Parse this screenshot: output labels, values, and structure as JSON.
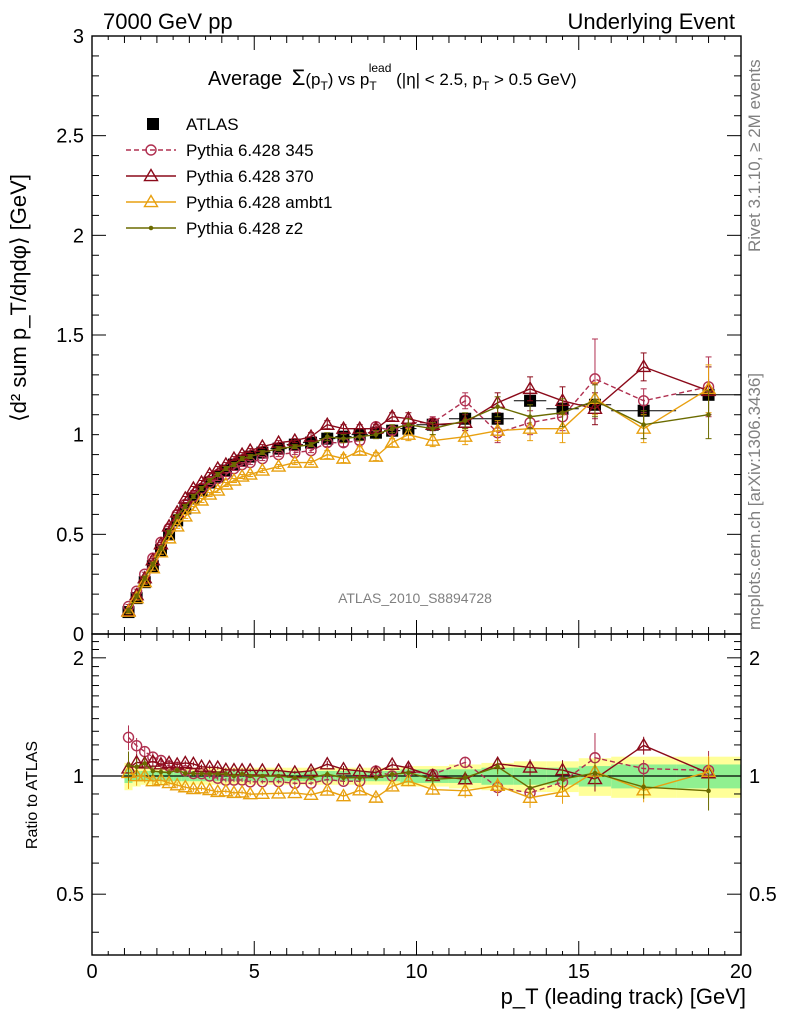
{
  "header": {
    "left": "7000 GeV pp",
    "right": "Underlying Event"
  },
  "plot_title": {
    "prefix": "Average",
    "sigma": "Σ",
    "arg": "(p",
    "arg_sub": "T",
    "arg_close": ")",
    "vs": " vs p",
    "vs_sub": "T",
    "vs_sup": "lead",
    "cuts1": " (|η| < 2.5, p",
    "cuts_sub": "T",
    "cuts2": " > 0.5 GeV)"
  },
  "watermark": "ATLAS_2010_S8894728",
  "side_text": {
    "rivet": "Rivet 3.1.10, ≥ 2M events",
    "mcplots": "mcplots.cern.ch [arXiv:1306.3436]"
  },
  "axes": {
    "ylabel_main": "⟨d² sum p_T/dηdφ⟩ [GeV]",
    "ylabel_ratio": "Ratio to ATLAS",
    "xlabel": "p_T (leading track) [GeV]",
    "main_yticks": [
      "0",
      "0.5",
      "1",
      "1.5",
      "2",
      "2.5",
      "3"
    ],
    "ratio_yticks": [
      "0.5",
      "1",
      "2"
    ],
    "xticks": [
      "0",
      "5",
      "10",
      "15",
      "20"
    ]
  },
  "chart_data": {
    "type": "line",
    "xlim": [
      0,
      20
    ],
    "main_ylim": [
      0,
      3
    ],
    "ratio_ylim": [
      0.35,
      2.3
    ],
    "ratio_scale": "log",
    "grid": false,
    "legend_position": "top-left",
    "x": [
      1.125,
      1.375,
      1.625,
      1.875,
      2.125,
      2.375,
      2.625,
      2.875,
      3.125,
      3.375,
      3.625,
      3.875,
      4.125,
      4.375,
      4.625,
      4.875,
      5.25,
      5.75,
      6.25,
      6.75,
      7.25,
      7.75,
      8.25,
      8.75,
      9.25,
      9.75,
      10.5,
      11.5,
      12.5,
      13.5,
      14.5,
      15.5,
      17.0,
      19.0
    ],
    "x_halfwidth": [
      0.125,
      0.125,
      0.125,
      0.125,
      0.125,
      0.125,
      0.125,
      0.125,
      0.125,
      0.125,
      0.125,
      0.125,
      0.125,
      0.125,
      0.125,
      0.125,
      0.25,
      0.25,
      0.25,
      0.25,
      0.25,
      0.25,
      0.25,
      0.25,
      0.25,
      0.25,
      0.5,
      0.5,
      0.5,
      0.5,
      0.5,
      0.5,
      1.0,
      1.0
    ],
    "data": {
      "name": "ATLAS",
      "values": [
        0.11,
        0.18,
        0.26,
        0.34,
        0.42,
        0.5,
        0.57,
        0.63,
        0.68,
        0.72,
        0.76,
        0.79,
        0.82,
        0.85,
        0.87,
        0.89,
        0.91,
        0.93,
        0.95,
        0.96,
        0.98,
        0.99,
        1.0,
        1.01,
        1.02,
        1.03,
        1.05,
        1.08,
        1.08,
        1.17,
        1.13,
        1.15,
        1.12,
        1.2
      ],
      "errors": [
        0.01,
        0.01,
        0.01,
        0.01,
        0.01,
        0.01,
        0.01,
        0.01,
        0.01,
        0.01,
        0.01,
        0.01,
        0.01,
        0.01,
        0.01,
        0.01,
        0.01,
        0.01,
        0.01,
        0.01,
        0.01,
        0.02,
        0.02,
        0.02,
        0.02,
        0.02,
        0.03,
        0.03,
        0.04,
        0.05,
        0.05,
        0.07,
        0.06,
        0.08
      ]
    },
    "band": {
      "inner": [
        0.04,
        0.03,
        0.03,
        0.03,
        0.03,
        0.03,
        0.03,
        0.03,
        0.03,
        0.03,
        0.03,
        0.03,
        0.03,
        0.03,
        0.03,
        0.03,
        0.03,
        0.03,
        0.03,
        0.03,
        0.03,
        0.03,
        0.03,
        0.03,
        0.03,
        0.04,
        0.04,
        0.04,
        0.05,
        0.05,
        0.05,
        0.06,
        0.07,
        0.07
      ],
      "outer": [
        0.08,
        0.06,
        0.05,
        0.05,
        0.05,
        0.05,
        0.05,
        0.05,
        0.05,
        0.05,
        0.05,
        0.05,
        0.05,
        0.05,
        0.05,
        0.05,
        0.05,
        0.05,
        0.05,
        0.05,
        0.05,
        0.05,
        0.05,
        0.05,
        0.05,
        0.06,
        0.06,
        0.07,
        0.08,
        0.09,
        0.09,
        0.11,
        0.12,
        0.12
      ]
    },
    "series": [
      {
        "name": "Pythia 6.428 345",
        "color": "#b03050",
        "marker": "circle",
        "dashed": true,
        "values": [
          0.138,
          0.215,
          0.3,
          0.38,
          0.46,
          0.53,
          0.6,
          0.65,
          0.69,
          0.73,
          0.76,
          0.78,
          0.8,
          0.83,
          0.85,
          0.86,
          0.88,
          0.9,
          0.91,
          0.92,
          0.96,
          0.96,
          0.97,
          1.04,
          1.02,
          1.06,
          1.06,
          1.17,
          1.01,
          1.06,
          1.09,
          1.28,
          1.17,
          1.24
        ],
        "errors": [
          0.01,
          0.01,
          0.01,
          0.01,
          0.01,
          0.01,
          0.01,
          0.01,
          0.01,
          0.01,
          0.01,
          0.01,
          0.01,
          0.01,
          0.01,
          0.01,
          0.01,
          0.01,
          0.01,
          0.01,
          0.02,
          0.02,
          0.02,
          0.02,
          0.02,
          0.03,
          0.03,
          0.04,
          0.05,
          0.06,
          0.07,
          0.2,
          0.06,
          0.15
        ]
      },
      {
        "name": "Pythia 6.428 370",
        "color": "#8b0a1a",
        "marker": "triangle",
        "dashed": false,
        "values": [
          0.115,
          0.195,
          0.28,
          0.37,
          0.45,
          0.54,
          0.61,
          0.68,
          0.73,
          0.76,
          0.8,
          0.83,
          0.85,
          0.88,
          0.9,
          0.92,
          0.94,
          0.96,
          0.97,
          0.99,
          1.05,
          1.03,
          1.03,
          1.03,
          1.09,
          1.08,
          1.05,
          1.06,
          1.16,
          1.23,
          1.17,
          1.13,
          1.34,
          1.22
        ],
        "errors": [
          0.01,
          0.01,
          0.01,
          0.01,
          0.01,
          0.01,
          0.01,
          0.01,
          0.01,
          0.01,
          0.01,
          0.01,
          0.01,
          0.01,
          0.01,
          0.01,
          0.01,
          0.01,
          0.01,
          0.02,
          0.02,
          0.02,
          0.02,
          0.02,
          0.02,
          0.03,
          0.03,
          0.04,
          0.05,
          0.06,
          0.07,
          0.08,
          0.07,
          0.12
        ]
      },
      {
        "name": "Pythia 6.428 ambt1",
        "color": "#e8a010",
        "marker": "triangle",
        "dashed": false,
        "values": [
          0.112,
          0.18,
          0.26,
          0.33,
          0.41,
          0.48,
          0.54,
          0.59,
          0.63,
          0.67,
          0.7,
          0.72,
          0.75,
          0.77,
          0.79,
          0.8,
          0.82,
          0.84,
          0.86,
          0.86,
          0.9,
          0.88,
          0.92,
          0.89,
          0.96,
          1.0,
          0.97,
          0.99,
          1.02,
          1.03,
          1.03,
          1.18,
          1.03,
          1.23
        ],
        "errors": [
          0.01,
          0.01,
          0.01,
          0.01,
          0.01,
          0.01,
          0.01,
          0.01,
          0.01,
          0.01,
          0.01,
          0.01,
          0.01,
          0.01,
          0.01,
          0.01,
          0.01,
          0.01,
          0.01,
          0.01,
          0.02,
          0.02,
          0.02,
          0.02,
          0.02,
          0.03,
          0.03,
          0.04,
          0.05,
          0.06,
          0.07,
          0.08,
          0.07,
          0.12
        ]
      },
      {
        "name": "Pythia 6.428 z2",
        "color": "#6b6b00",
        "marker": "dot",
        "dashed": false,
        "values": [
          0.117,
          0.19,
          0.28,
          0.35,
          0.43,
          0.51,
          0.59,
          0.64,
          0.69,
          0.73,
          0.77,
          0.8,
          0.83,
          0.85,
          0.88,
          0.89,
          0.91,
          0.93,
          0.94,
          0.95,
          0.99,
          0.98,
          0.99,
          1.0,
          1.03,
          1.05,
          1.03,
          1.07,
          1.14,
          1.09,
          1.11,
          1.17,
          1.05,
          1.1
        ],
        "errors": [
          0.01,
          0.01,
          0.01,
          0.01,
          0.01,
          0.01,
          0.01,
          0.01,
          0.01,
          0.01,
          0.01,
          0.01,
          0.01,
          0.01,
          0.01,
          0.01,
          0.01,
          0.01,
          0.01,
          0.01,
          0.02,
          0.02,
          0.02,
          0.02,
          0.02,
          0.03,
          0.03,
          0.04,
          0.05,
          0.06,
          0.07,
          0.08,
          0.07,
          0.12
        ]
      }
    ]
  },
  "colors": {
    "band_inner": "#90f090",
    "band_outer": "#ffff99",
    "data_marker": "#000000",
    "side_text": "#808080"
  }
}
